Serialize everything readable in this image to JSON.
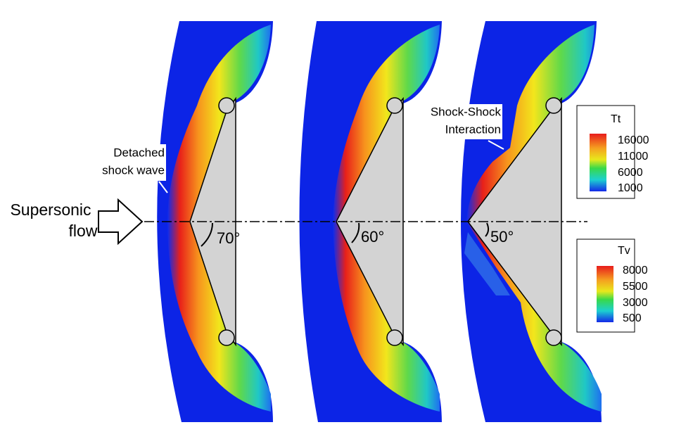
{
  "annotations": {
    "flow": [
      "Supersonic",
      "flow"
    ],
    "shock": [
      "Detached",
      "shock wave"
    ],
    "interaction": [
      "Shock-Shock",
      "Interaction"
    ]
  },
  "panels": [
    {
      "angle": "70°"
    },
    {
      "angle": "60°"
    },
    {
      "angle": "50°"
    }
  ],
  "legends": [
    {
      "title": "Tt",
      "labels": [
        16000,
        11000,
        6000,
        1000
      ]
    },
    {
      "title": "Tv",
      "labels": [
        8000,
        5500,
        3000,
        500
      ]
    }
  ]
}
